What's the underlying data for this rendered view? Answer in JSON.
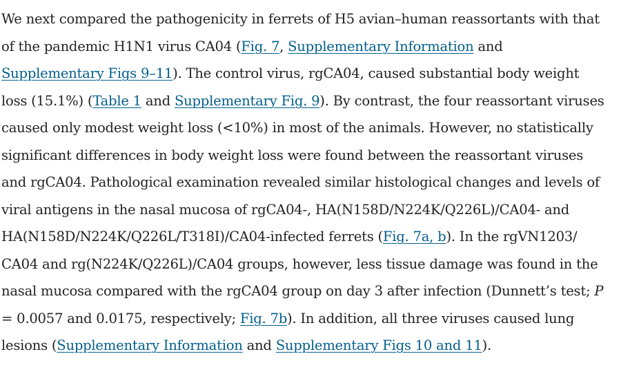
{
  "paragraph": {
    "l1": "We next compared the pathogenicity in ferrets of H5 avian–human reassortants with that",
    "l2_a": "of the pandemic H1N1 virus CA04 (",
    "l2_link1": "Fig. 7",
    "l2_b": ", ",
    "l2_link2": "Supplementary Information",
    "l2_c": " and",
    "l3_link": "Supplementary Figs 9–11",
    "l3_b": "). The control virus, rgCA04, caused substantial body weight",
    "l4_a": "loss (15.1%) (",
    "l4_link1": "Table 1",
    "l4_b": " and ",
    "l4_link2": "Supplementary Fig. 9",
    "l4_c": "). By contrast, the four reassortant viruses",
    "l5": "caused only modest weight loss (<10%) in most of the animals. However, no statistically",
    "l6": "significant differences in body weight loss were found between the reassortant viruses",
    "l7": "and rgCA04. Pathological examination revealed similar histological changes and levels of",
    "l8": "viral antigens in the nasal mucosa of rgCA04-, HA(N158D/N224K/Q226L)/CA04- and",
    "l9_a": "HA(N158D/N224K/Q226L/T318I)/CA04-infected ferrets (",
    "l9_link": "Fig. 7a, b",
    "l9_b": "). In the rgVN1203/",
    "l10": "CA04 and rg(N224K/Q226L)/CA04 groups, however, less tissue damage was found in the",
    "l11_a": "nasal mucosa compared with the rgCA04 group on day 3 after infection (Dunnett’s test; ",
    "l11_p": "P",
    "l12_a": "= 0.0057 and 0.0175, respectively; ",
    "l12_link": "Fig. 7b",
    "l12_b": "). In addition, all three viruses caused lung",
    "l13_a": "lesions (",
    "l13_link1": "Supplementary Information",
    "l13_b": " and ",
    "l13_link2": "Supplementary Figs 10 and 11",
    "l13_c": ")."
  },
  "colors": {
    "text": "#222222",
    "link": "#025e8d",
    "background": "#ffffff"
  }
}
